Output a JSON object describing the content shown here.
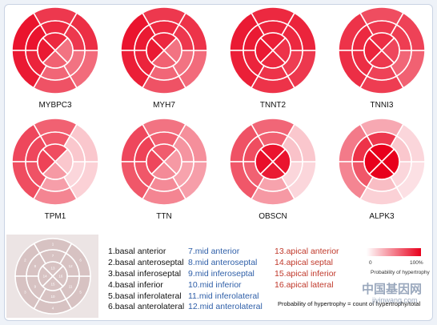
{
  "colors": {
    "ring_stroke": "#ffffff",
    "max_color": "#e8001c",
    "reference_fill": "#d7c2c2",
    "reference_text": "#ffffff"
  },
  "genes": [
    {
      "name": "MYBPC3",
      "basal": [
        0.78,
        0.92,
        0.9,
        0.68,
        0.58,
        0.82
      ],
      "mid": [
        0.84,
        0.92,
        0.86,
        0.6,
        0.55,
        0.78
      ],
      "apical": [
        0.84,
        0.9,
        0.62,
        0.55
      ]
    },
    {
      "name": "MYH7",
      "basal": [
        0.78,
        0.92,
        0.88,
        0.68,
        0.58,
        0.8
      ],
      "mid": [
        0.84,
        0.9,
        0.86,
        0.6,
        0.55,
        0.78
      ],
      "apical": [
        0.84,
        0.9,
        0.62,
        0.55
      ]
    },
    {
      "name": "TNNT2",
      "basal": [
        0.84,
        0.9,
        0.88,
        0.8,
        0.78,
        0.86
      ],
      "mid": [
        0.86,
        0.9,
        0.86,
        0.8,
        0.76,
        0.84
      ],
      "apical": [
        0.88,
        0.9,
        0.84,
        0.8
      ]
    },
    {
      "name": "TNNI3",
      "basal": [
        0.7,
        0.8,
        0.82,
        0.76,
        0.62,
        0.74
      ],
      "mid": [
        0.78,
        0.84,
        0.82,
        0.74,
        0.6,
        0.76
      ],
      "apical": [
        0.82,
        0.86,
        0.78,
        0.72
      ]
    },
    {
      "name": "TPM1",
      "basal": [
        0.62,
        0.72,
        0.7,
        0.48,
        0.18,
        0.22
      ],
      "mid": [
        0.66,
        0.72,
        0.68,
        0.38,
        0.16,
        0.22
      ],
      "apical": [
        0.7,
        0.74,
        0.4,
        0.22
      ]
    },
    {
      "name": "TTN",
      "basal": [
        0.55,
        0.72,
        0.66,
        0.48,
        0.38,
        0.44
      ],
      "mid": [
        0.62,
        0.74,
        0.66,
        0.46,
        0.36,
        0.42
      ],
      "apical": [
        0.64,
        0.72,
        0.46,
        0.4
      ]
    },
    {
      "name": "OBSCN",
      "basal": [
        0.6,
        0.68,
        0.66,
        0.4,
        0.16,
        0.22
      ],
      "mid": [
        0.62,
        0.7,
        0.62,
        0.36,
        0.16,
        0.24
      ],
      "apical": [
        0.92,
        0.94,
        0.9,
        0.92
      ]
    },
    {
      "name": "ALPK3",
      "basal": [
        0.34,
        0.52,
        0.48,
        0.18,
        0.12,
        0.16
      ],
      "mid": [
        0.78,
        0.8,
        0.66,
        0.26,
        0.16,
        0.22
      ],
      "apical": [
        1.0,
        1.0,
        1.0,
        1.0
      ]
    }
  ],
  "reference": {
    "basal_labels": [
      "1",
      "2",
      "3",
      "4",
      "5",
      "6"
    ],
    "mid_labels": [
      "7",
      "8",
      "9",
      "10",
      "11",
      "12"
    ],
    "apical_labels": [
      "13",
      "14",
      "15",
      "16"
    ]
  },
  "legend": {
    "group1": [
      "1.basal anterior",
      "2.basal anteroseptal",
      "3.basal inferoseptal",
      "4.basal inferior",
      "5.basal inferolateral",
      "6.basal anterolateral"
    ],
    "group2": [
      "7.mid anterior",
      "8.mid anteroseptal",
      "9.mid inferoseptal",
      "10.mid inferior",
      "11.mid inferolateral",
      "12.mid anterolateral"
    ],
    "group3": [
      "13.apical anterior",
      "14.apical septal",
      "15.apical inferior",
      "16.apical lateral"
    ]
  },
  "colorbar": {
    "min_label": "0",
    "max_label": "100%",
    "title": "Probability of hypertrophy"
  },
  "formula": "Probability of hypertrophy = count of hypertrophy/total",
  "watermark": {
    "line1": "中国基因网",
    "line2": "jiyinwang.com"
  }
}
